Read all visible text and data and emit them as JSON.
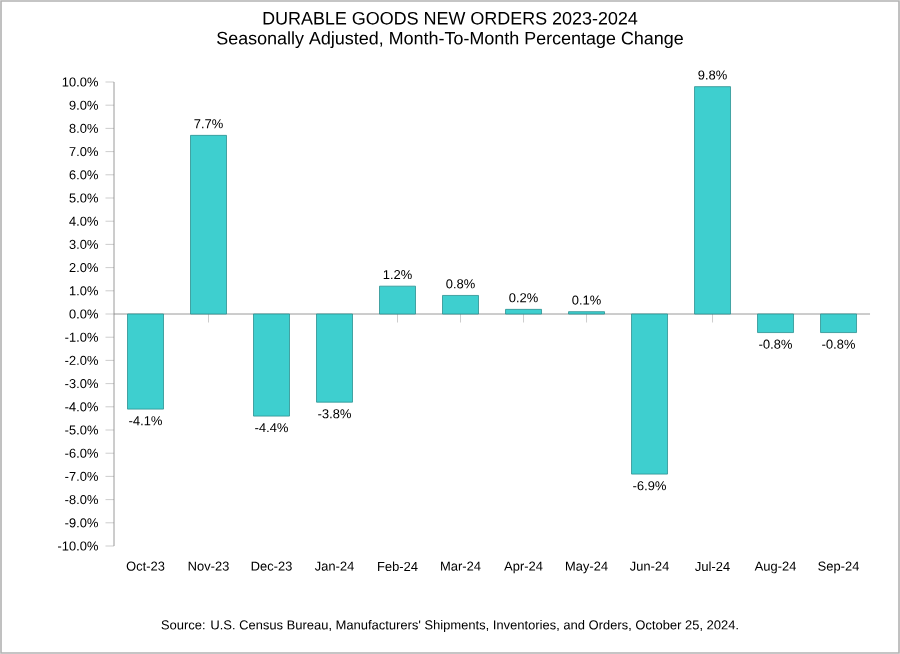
{
  "chart_data": {
    "type": "bar",
    "title": "DURABLE GOODS NEW ORDERS 2023-2024",
    "subtitle": "Seasonally Adjusted,  Month-To-Month Percentage Change",
    "categories": [
      "Oct-23",
      "Nov-23",
      "Dec-23",
      "Jan-24",
      "Feb-24",
      "Mar-24",
      "Apr-24",
      "May-24",
      "Jun-24",
      "Jul-24",
      "Aug-24",
      "Sep-24"
    ],
    "values": [
      -4.1,
      7.7,
      -4.4,
      -3.8,
      1.2,
      0.8,
      0.2,
      0.1,
      -6.9,
      9.8,
      -0.8,
      -0.8
    ],
    "value_labels": [
      "-4.1%",
      "7.7%",
      "-4.4%",
      "-3.8%",
      "1.2%",
      "0.8%",
      "0.2%",
      "0.1%",
      "-6.9%",
      "9.8%",
      "-0.8%",
      "-0.8%"
    ],
    "color": "#3ecfcf",
    "ylim": [
      -10,
      10
    ],
    "yticks": [
      {
        "value": -10,
        "label": "-10.0%"
      },
      {
        "value": -9,
        "label": "-9.0%"
      },
      {
        "value": -8,
        "label": "-8.0%"
      },
      {
        "value": -7,
        "label": "-7.0%"
      },
      {
        "value": -6,
        "label": "-6.0%"
      },
      {
        "value": -5,
        "label": "-5.0%"
      },
      {
        "value": -4,
        "label": "-4.0%"
      },
      {
        "value": -3,
        "label": "-3.0%"
      },
      {
        "value": -2,
        "label": "-2.0%"
      },
      {
        "value": -1,
        "label": "-1.0%"
      },
      {
        "value": 0,
        "label": "0.0%"
      },
      {
        "value": 1,
        "label": "1.0%"
      },
      {
        "value": 2,
        "label": "2.0%"
      },
      {
        "value": 3,
        "label": "3.0%"
      },
      {
        "value": 4,
        "label": "4.0%"
      },
      {
        "value": 5,
        "label": "5.0%"
      },
      {
        "value": 6,
        "label": "6.0%"
      },
      {
        "value": 7,
        "label": "7.0%"
      },
      {
        "value": 8,
        "label": "8.0%"
      },
      {
        "value": 9,
        "label": "9.0%"
      },
      {
        "value": 10,
        "label": "10.0%"
      }
    ],
    "annotations": [
      "Source: U.S. Census Bureau, Manufacturers' Shipments, Inventories, and Orders, October 25, 2024."
    ]
  }
}
